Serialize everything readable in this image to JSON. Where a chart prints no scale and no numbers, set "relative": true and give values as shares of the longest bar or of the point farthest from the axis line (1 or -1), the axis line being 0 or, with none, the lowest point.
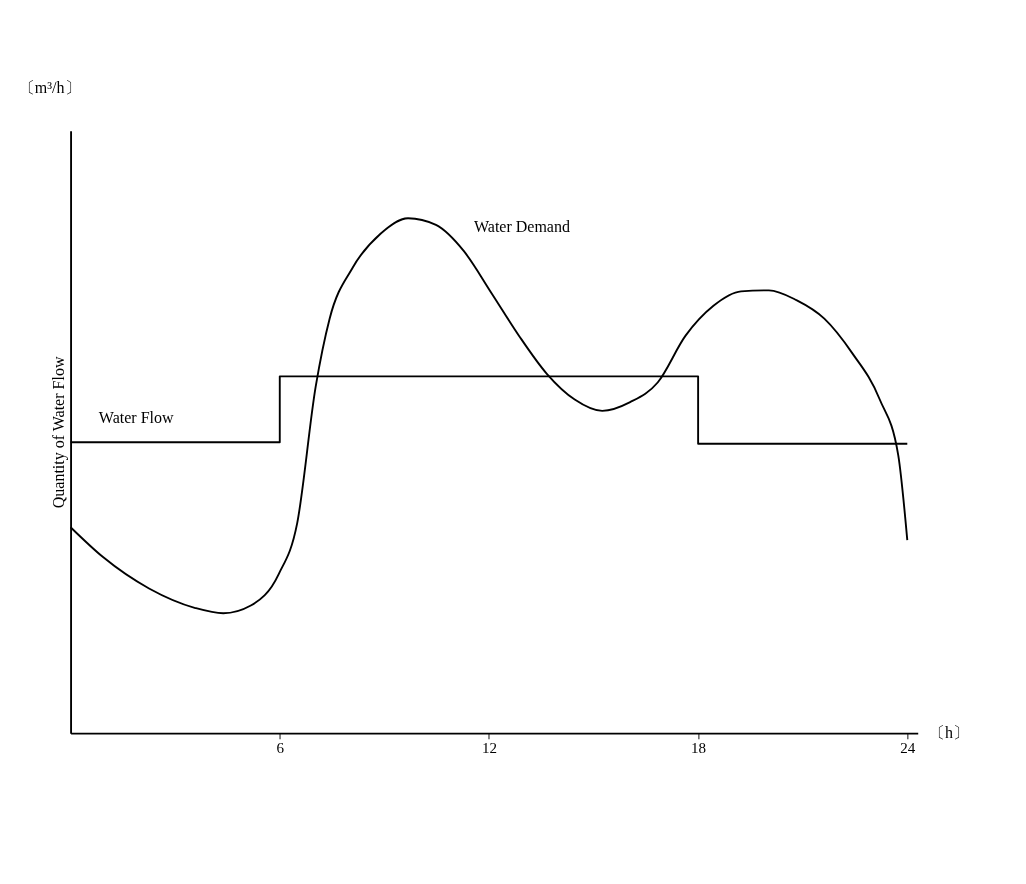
{
  "chart_data": {
    "type": "line",
    "relative": true,
    "ylabel": "Quantity of Water Flow",
    "xlabel": "〔h〕",
    "annotations": [
      "〔m³/h〕"
    ],
    "xlim": [
      0,
      24.3
    ],
    "xticks": [
      6,
      12,
      18,
      24
    ],
    "grid": false,
    "marker": "none",
    "line_style": "solid",
    "series": [
      {
        "name": "Water Demand",
        "color": "#000000",
        "x": [
          0,
          0.93,
          2.25,
          3.58,
          4.38,
          5.17,
          5.97,
          6.5,
          7.03,
          7.43,
          8.09,
          8.89,
          9.68,
          10.48,
          11.27,
          12.07,
          12.86,
          13.66,
          14.46,
          15.25,
          16.05,
          16.84,
          17.64,
          18.44,
          19.23,
          20.03,
          20.82,
          21.62,
          22.41,
          23.21,
          23.74,
          24
        ],
        "values": [
          0.4,
          0.342,
          0.281,
          0.243,
          0.233,
          0.248,
          0.309,
          0.408,
          0.673,
          0.805,
          0.904,
          0.97,
          1.0,
          0.987,
          0.937,
          0.855,
          0.772,
          0.698,
          0.648,
          0.626,
          0.643,
          0.681,
          0.772,
          0.83,
          0.858,
          0.86,
          0.841,
          0.805,
          0.739,
          0.648,
          0.54,
          0.375
        ]
      },
      {
        "name": "Water Flow",
        "type": "step",
        "color": "#000000",
        "x": [
          0,
          6,
          18,
          24
        ],
        "values": [
          0.565,
          0.693,
          0.562,
          0.562
        ]
      }
    ]
  }
}
